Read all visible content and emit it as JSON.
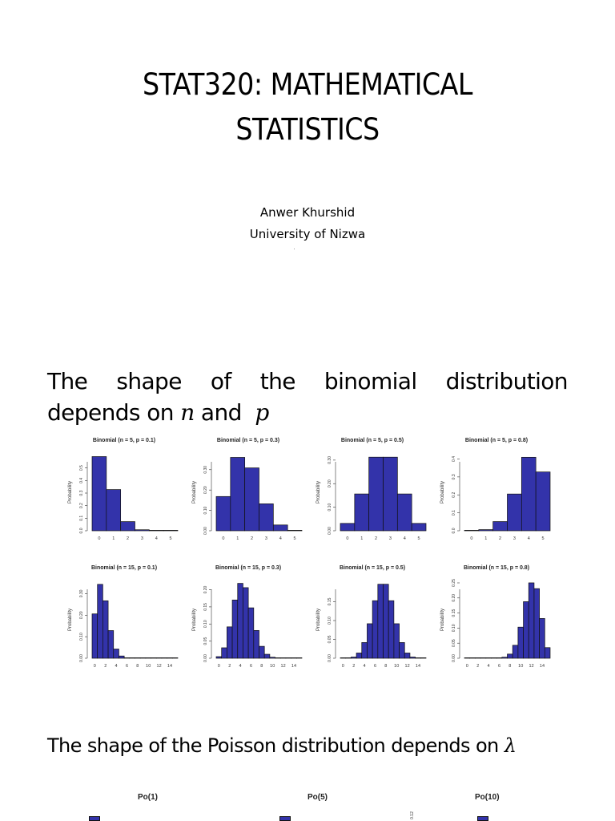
{
  "slide": {
    "title_lines": [
      "STAT320: MATHEMATICAL",
      "STATISTICS"
    ],
    "author": "Anwer Khurshid",
    "affiliation": "University of Nizwa"
  },
  "binomial_section": {
    "text_line1_words": [
      "The",
      "shape",
      "of",
      "the",
      "binomial",
      "distribution"
    ],
    "text_line2_prefix": "depends on ",
    "var_n": "n",
    "text_and": " and  ",
    "var_p": "p"
  },
  "poisson_section": {
    "text": "The shape of the Poisson distribution depends on ",
    "var_lambda": "λ",
    "plots": [
      {
        "title": "Po(1)"
      },
      {
        "title": "Po(5)"
      },
      {
        "title": "Po(10)"
      }
    ],
    "partial_tick": "0.12"
  },
  "colors": {
    "bar_fill": "#3333aa",
    "bar_stroke": "#111111",
    "axis": "#333333"
  },
  "chart_data": [
    {
      "type": "bar",
      "title": "Binomial (n = 5,  p = 0.1)",
      "xlabel": "",
      "ylabel": "Probability",
      "categories": [
        0,
        1,
        2,
        3,
        4,
        5
      ],
      "values": [
        0.5905,
        0.3281,
        0.0729,
        0.0081,
        0.0005,
        0.0
      ],
      "yticks": [
        "0.0",
        "0.1",
        "0.2",
        "0.3",
        "0.4",
        "0.5"
      ],
      "xticks": [
        "0",
        "1",
        "2",
        "3",
        "4",
        "5"
      ],
      "ylim": [
        0,
        0.6
      ]
    },
    {
      "type": "bar",
      "title": "Binomial (n = 5,  p = 0.3)",
      "xlabel": "",
      "ylabel": "Probability",
      "categories": [
        0,
        1,
        2,
        3,
        4,
        5
      ],
      "values": [
        0.1681,
        0.3602,
        0.3087,
        0.1323,
        0.0284,
        0.0024
      ],
      "yticks": [
        "0.00",
        "0.10",
        "0.20",
        "0.30"
      ],
      "xticks": [
        "0",
        "1",
        "2",
        "3",
        "4",
        "5"
      ],
      "ylim": [
        0,
        0.37
      ]
    },
    {
      "type": "bar",
      "title": "Binomial (n = 5,  p = 0.5)",
      "xlabel": "",
      "ylabel": "Probability",
      "categories": [
        0,
        1,
        2,
        3,
        4,
        5
      ],
      "values": [
        0.0313,
        0.1563,
        0.3125,
        0.3125,
        0.1563,
        0.0313
      ],
      "yticks": [
        "0.00",
        "0.10",
        "0.20",
        "0.30"
      ],
      "xticks": [
        "0",
        "1",
        "2",
        "3",
        "4",
        "5"
      ],
      "ylim": [
        0,
        0.32
      ]
    },
    {
      "type": "bar",
      "title": "Binomial (n = 5,  p = 0.8)",
      "xlabel": "",
      "ylabel": "Probability",
      "categories": [
        0,
        1,
        2,
        3,
        4,
        5
      ],
      "values": [
        0.0003,
        0.0064,
        0.0512,
        0.2048,
        0.4096,
        0.3277
      ],
      "yticks": [
        "0.0",
        "0.1",
        "0.2",
        "0.3",
        "0.4"
      ],
      "xticks": [
        "0",
        "1",
        "2",
        "3",
        "4",
        "5"
      ],
      "ylim": [
        0,
        0.42
      ]
    },
    {
      "type": "bar",
      "title": "Binomial (n = 15,  p = 0.1)",
      "xlabel": "",
      "ylabel": "Probability",
      "categories": [
        0,
        1,
        2,
        3,
        4,
        5,
        6,
        7,
        8,
        9,
        10,
        11,
        12,
        13,
        14,
        15
      ],
      "values": [
        0.2059,
        0.3432,
        0.2669,
        0.1285,
        0.0428,
        0.0105,
        0.0019,
        0.0003,
        0,
        0,
        0,
        0,
        0,
        0,
        0,
        0
      ],
      "yticks": [
        "0.00",
        "0.10",
        "0.20",
        "0.30"
      ],
      "xticks": [
        "0",
        "2",
        "4",
        "6",
        "8",
        "10",
        "12",
        "14"
      ],
      "ylim": [
        0,
        0.35
      ]
    },
    {
      "type": "bar",
      "title": "Binomial (n = 15,  p = 0.3)",
      "xlabel": "",
      "ylabel": "Probability",
      "categories": [
        0,
        1,
        2,
        3,
        4,
        5,
        6,
        7,
        8,
        9,
        10,
        11,
        12,
        13,
        14,
        15
      ],
      "values": [
        0.0047,
        0.0305,
        0.0916,
        0.17,
        0.2186,
        0.2061,
        0.1472,
        0.0811,
        0.0348,
        0.0116,
        0.003,
        0.0006,
        0.0001,
        0,
        0,
        0
      ],
      "yticks": [
        "0.00",
        "0.05",
        "0.10",
        "0.15",
        "0.20"
      ],
      "xticks": [
        "0",
        "2",
        "4",
        "6",
        "8",
        "10",
        "12",
        "14"
      ],
      "ylim": [
        0,
        0.22
      ]
    },
    {
      "type": "bar",
      "title": "Binomial (n = 15,  p = 0.5)",
      "xlabel": "",
      "ylabel": "Probability",
      "categories": [
        0,
        1,
        2,
        3,
        4,
        5,
        6,
        7,
        8,
        9,
        10,
        11,
        12,
        13,
        14,
        15
      ],
      "values": [
        0.0,
        0.0005,
        0.0032,
        0.0139,
        0.0417,
        0.0916,
        0.1527,
        0.1964,
        0.1964,
        0.1527,
        0.0916,
        0.0417,
        0.0139,
        0.0032,
        0.0005,
        0.0
      ],
      "yticks": [
        "0.00",
        "0.05",
        "0.10",
        "0.15"
      ],
      "xticks": [
        "0",
        "2",
        "4",
        "6",
        "8",
        "10",
        "12",
        "14"
      ],
      "ylim": [
        0,
        0.2
      ]
    },
    {
      "type": "bar",
      "title": "Binomial (n = 15,  p = 0.8)",
      "xlabel": "",
      "ylabel": "Probability",
      "categories": [
        0,
        1,
        2,
        3,
        4,
        5,
        6,
        7,
        8,
        9,
        10,
        11,
        12,
        13,
        14,
        15
      ],
      "values": [
        0,
        0,
        0,
        0,
        0,
        0.0001,
        0.0007,
        0.0035,
        0.0138,
        0.043,
        0.1032,
        0.1876,
        0.2501,
        0.2309,
        0.1319,
        0.0352
      ],
      "yticks": [
        "0.00",
        "0.05",
        "0.10",
        "0.15",
        "0.20",
        "0.25"
      ],
      "xticks": [
        "0",
        "2",
        "4",
        "6",
        "8",
        "10",
        "12",
        "14"
      ],
      "ylim": [
        0,
        0.25
      ]
    }
  ]
}
